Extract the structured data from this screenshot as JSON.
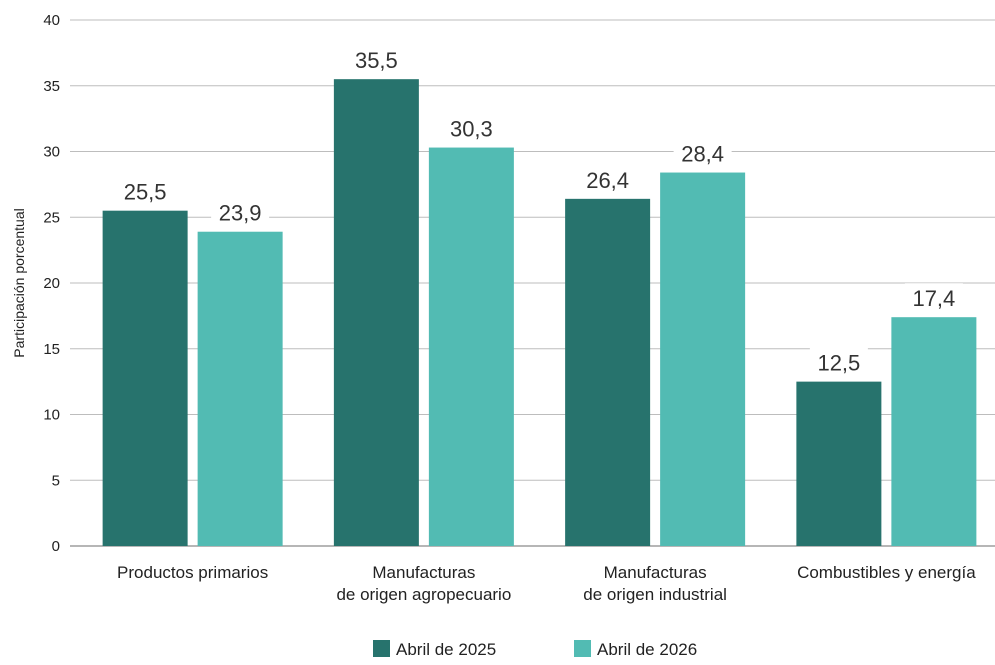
{
  "chart_data": {
    "type": "bar",
    "categories": [
      [
        "Productos primarios"
      ],
      [
        "Manufacturas",
        "de origen agropecuario"
      ],
      [
        "Manufacturas",
        "de origen industrial"
      ],
      [
        "Combustibles y energía"
      ]
    ],
    "series": [
      {
        "name": "Abril de 2025",
        "color": "#27736d",
        "values": [
          25.5,
          35.5,
          26.4,
          12.5
        ],
        "labels": [
          "25,5",
          "35,5",
          "26,4",
          "12,5"
        ]
      },
      {
        "name": "Abril de 2026",
        "color": "#52bbb3",
        "values": [
          23.9,
          30.3,
          28.4,
          17.4
        ],
        "labels": [
          "23,9",
          "30,3",
          "28,4",
          "17,4"
        ]
      }
    ],
    "ylabel": "Participación porcentual",
    "xlabel": "",
    "title": "",
    "ylim": [
      0,
      40
    ],
    "yticks": [
      0,
      5,
      10,
      15,
      20,
      25,
      30,
      35,
      40
    ],
    "grid": true,
    "legend_position": "bottom-center"
  }
}
